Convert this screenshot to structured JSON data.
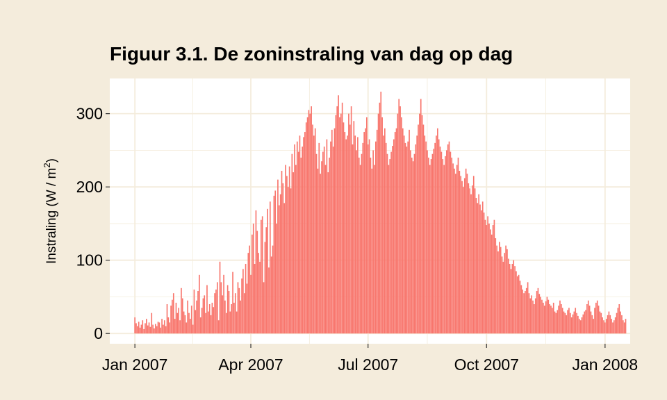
{
  "chart_data": {
    "type": "bar",
    "title": "Figuur 3.1. De zoninstraling van dag op dag",
    "xlabel": "",
    "ylabel": "Instraling (W / m",
    "ylabel_superscript": "2",
    "ylabel_close": ")",
    "x_start": "2007-01-01",
    "x_end": "2007-12-31",
    "xlim": [
      "2007-01-01",
      "2008-01-01"
    ],
    "ylim": [
      -14,
      348
    ],
    "x_ticks": [
      {
        "date": "2007-01-01",
        "label": "Jan 2007"
      },
      {
        "date": "2007-04-01",
        "label": "Apr 2007"
      },
      {
        "date": "2007-07-01",
        "label": "Jul 2007"
      },
      {
        "date": "2007-10-01",
        "label": "Oct 2007"
      },
      {
        "date": "2008-01-01",
        "label": "Jan 2008"
      }
    ],
    "y_ticks": [
      0,
      100,
      200,
      300
    ],
    "grid": true,
    "colors": {
      "bar": "#f8766d",
      "panel": "#ffffff",
      "grid": "#f4ecdc",
      "background": "#f4ecdc"
    },
    "values": [
      22,
      14,
      10,
      16,
      8,
      12,
      18,
      6,
      14,
      20,
      11,
      15,
      9,
      28,
      12,
      7,
      13,
      10,
      16,
      15,
      8,
      20,
      12,
      18,
      10,
      40,
      22,
      15,
      38,
      46,
      55,
      20,
      42,
      28,
      35,
      18,
      62,
      48,
      30,
      25,
      15,
      45,
      28,
      20,
      38,
      12,
      60,
      32,
      45,
      58,
      80,
      22,
      35,
      48,
      52,
      28,
      66,
      30,
      40,
      25,
      42,
      36,
      55,
      60,
      70,
      18,
      98,
      70,
      52,
      80,
      45,
      28,
      66,
      58,
      30,
      40,
      84,
      42,
      55,
      30,
      70,
      62,
      45,
      75,
      88,
      55,
      95,
      68,
      110,
      120,
      80,
      135,
      150,
      95,
      168,
      140,
      110,
      98,
      155,
      160,
      70,
      125,
      145,
      170,
      90,
      180,
      105,
      120,
      188,
      195,
      150,
      210,
      175,
      190,
      222,
      205,
      178,
      230,
      215,
      200,
      228,
      198,
      245,
      220,
      258,
      230,
      262,
      248,
      270,
      240,
      255,
      268,
      275,
      288,
      295,
      305,
      300,
      310,
      285,
      270,
      280,
      245,
      225,
      260,
      218,
      235,
      248,
      255,
      230,
      265,
      220,
      240,
      262,
      278,
      255,
      280,
      298,
      310,
      325,
      295,
      300,
      315,
      288,
      275,
      265,
      270,
      300,
      285,
      310,
      258,
      290,
      270,
      250,
      268,
      240,
      230,
      245,
      260,
      275,
      280,
      295,
      258,
      265,
      240,
      225,
      250,
      230,
      262,
      278,
      300,
      315,
      330,
      295,
      270,
      280,
      260,
      245,
      230,
      238,
      248,
      256,
      265,
      275,
      280,
      300,
      320,
      310,
      295,
      280,
      270,
      260,
      255,
      262,
      278,
      250,
      240,
      235,
      245,
      258,
      270,
      285,
      300,
      320,
      298,
      285,
      270,
      262,
      250,
      240,
      230,
      238,
      245,
      252,
      260,
      270,
      280,
      265,
      255,
      248,
      238,
      230,
      242,
      250,
      258,
      262,
      248,
      240,
      232,
      225,
      218,
      230,
      240,
      222,
      215,
      208,
      200,
      212,
      225,
      218,
      205,
      198,
      190,
      202,
      215,
      198,
      185,
      178,
      190,
      176,
      168,
      180,
      165,
      155,
      148,
      160,
      150,
      142,
      135,
      148,
      155,
      130,
      120,
      112,
      125,
      118,
      105,
      98,
      110,
      120,
      115,
      102,
      95,
      88,
      95,
      100,
      92,
      85,
      78,
      80,
      72,
      66,
      60,
      55,
      58,
      62,
      70,
      55,
      48,
      52,
      45,
      40,
      48,
      58,
      62,
      54,
      50,
      46,
      42,
      38,
      44,
      50,
      46,
      40,
      38,
      35,
      42,
      30,
      28,
      32,
      38,
      45,
      40,
      35,
      30,
      28,
      25,
      32,
      35,
      28,
      22,
      26,
      30,
      35,
      28,
      24,
      20,
      18,
      22,
      26,
      30,
      32,
      40,
      45,
      38,
      30,
      25,
      20,
      35,
      42,
      45,
      38,
      30,
      28,
      22,
      18,
      15,
      20,
      25,
      30,
      25,
      20,
      15,
      18,
      22,
      28,
      35,
      40,
      30,
      25,
      18,
      15,
      20
    ]
  }
}
